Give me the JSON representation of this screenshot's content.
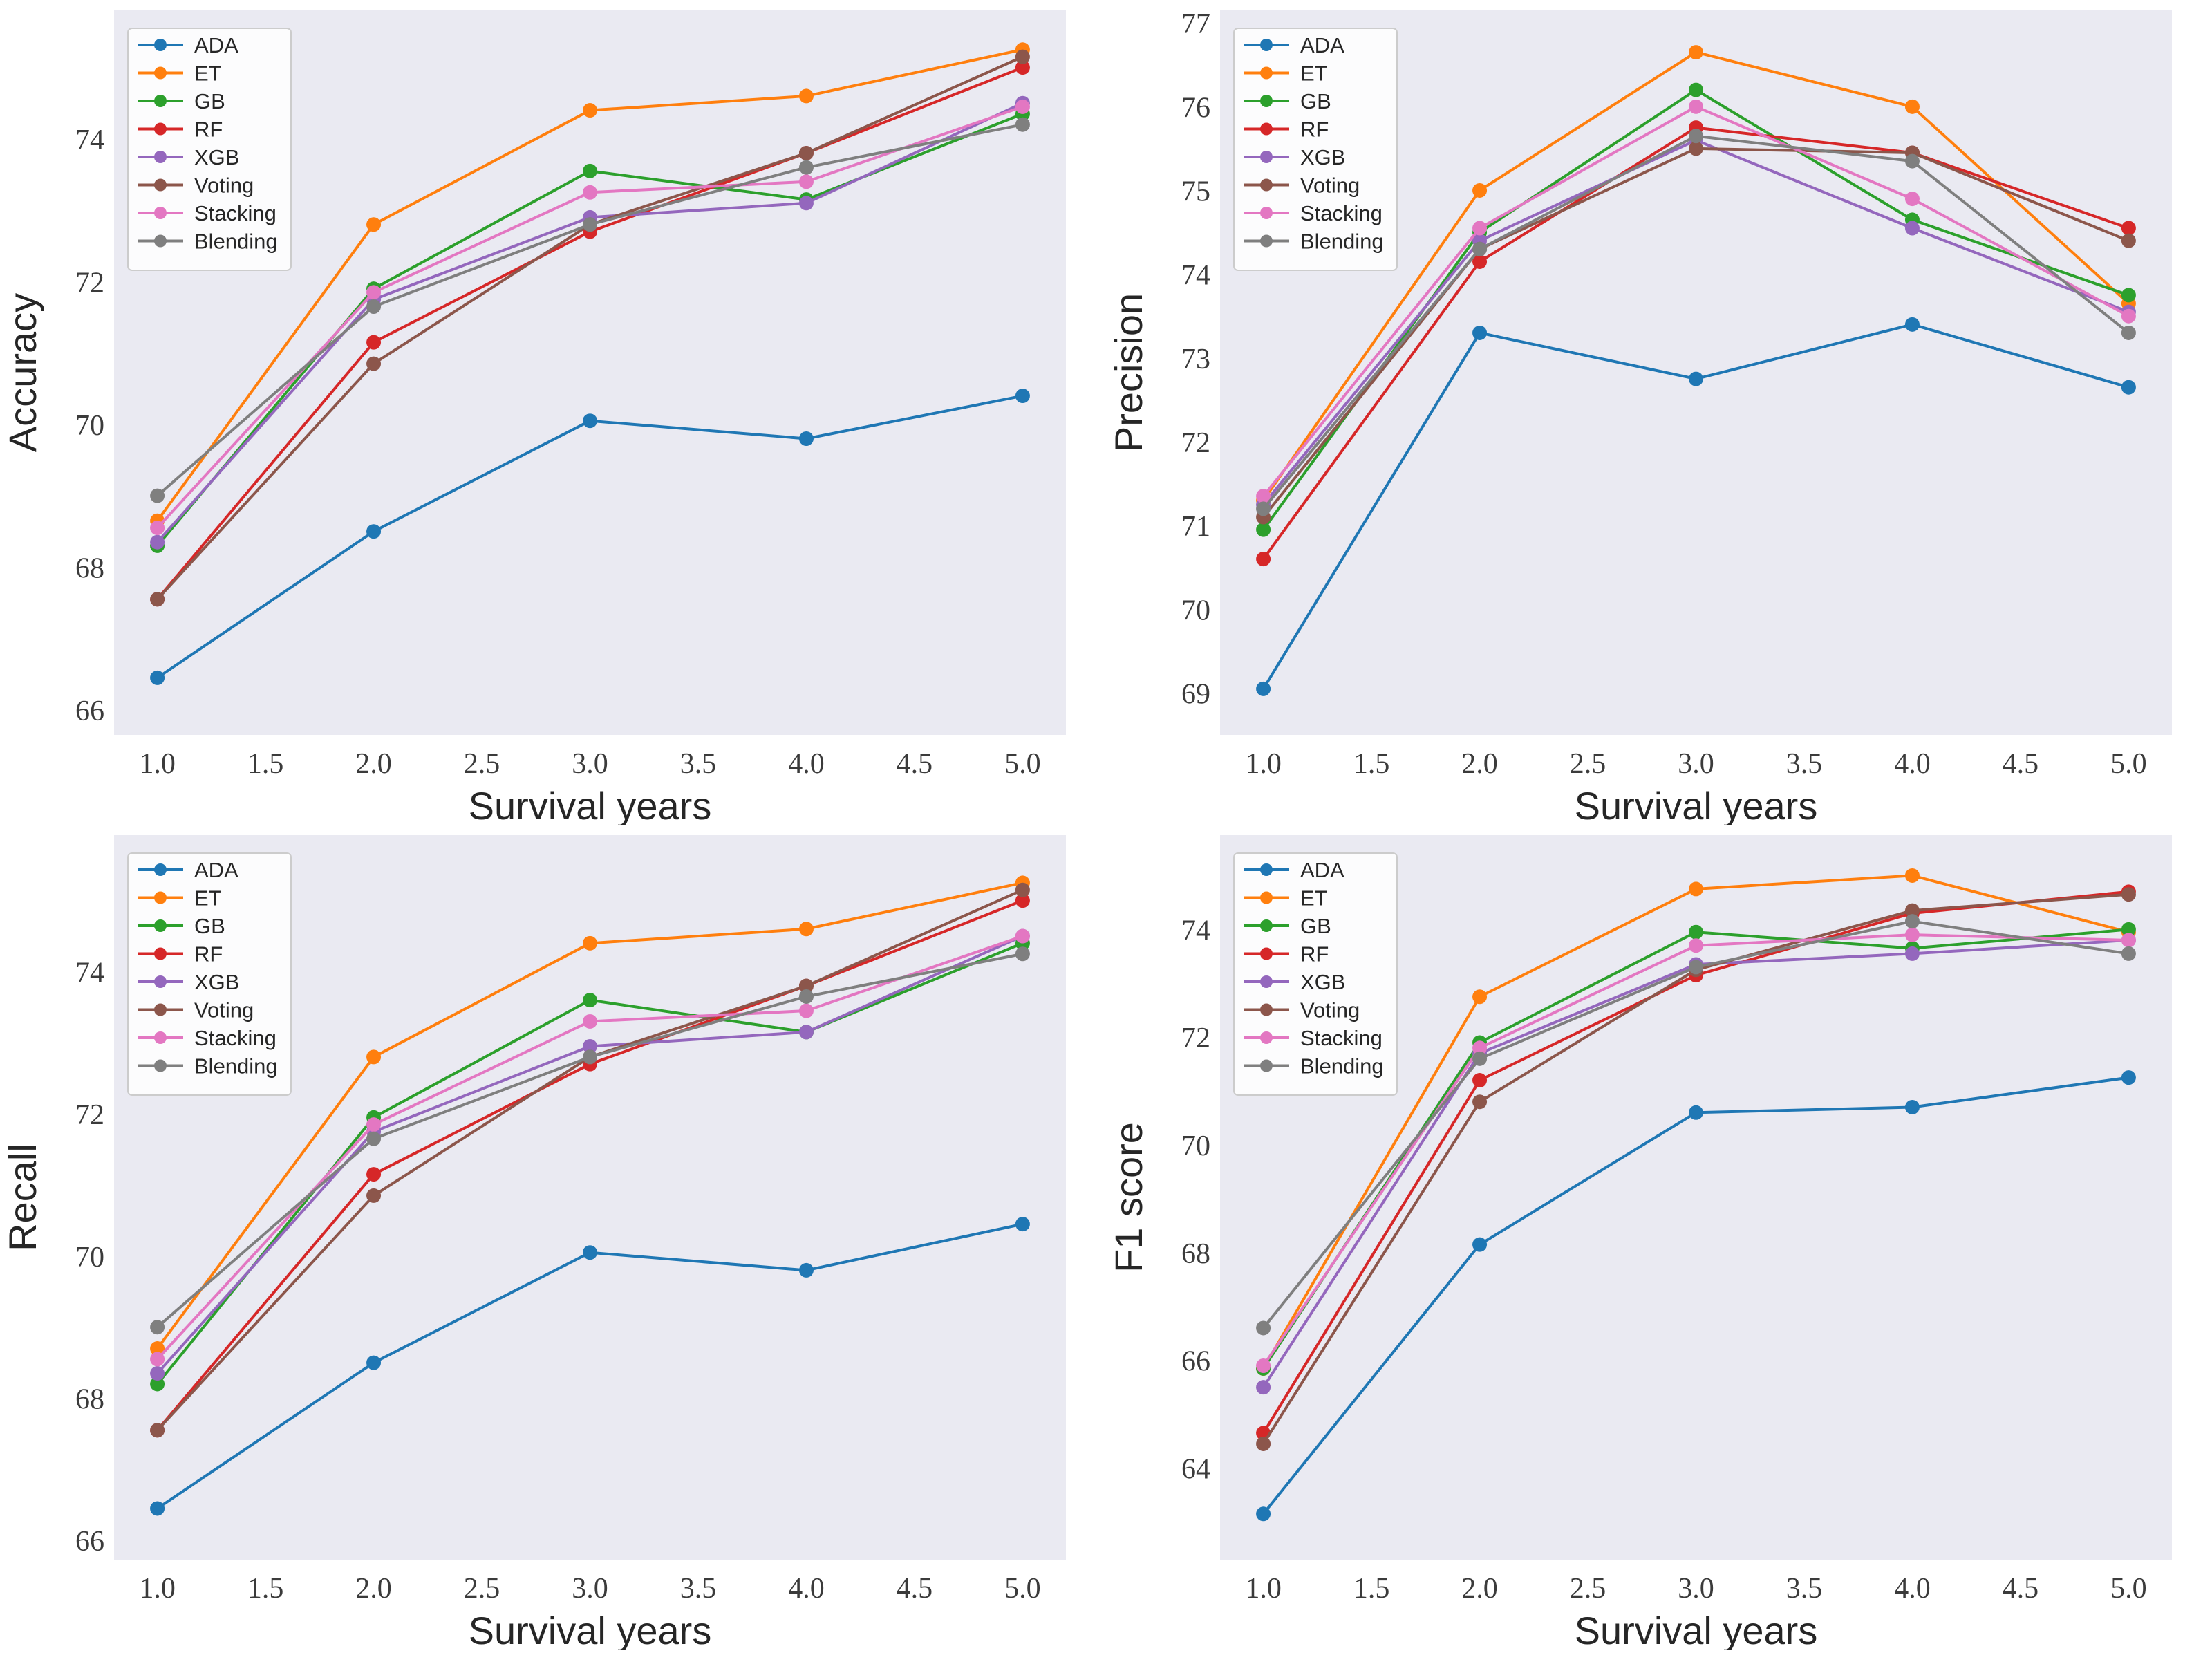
{
  "figure": {
    "background": "#ffffff",
    "plot_background": "#eaeaf2",
    "tick_color": "#3b3b3b",
    "label_color": "#262626",
    "legend_border": "#cccccc",
    "legend_background": "#ffffff"
  },
  "chart_data": [
    {
      "type": "line",
      "title": "",
      "xlabel": "Survival years",
      "ylabel": "Accuracy",
      "x": [
        1.0,
        2.0,
        3.0,
        4.0,
        5.0
      ],
      "xlim": [
        0.8,
        5.2
      ],
      "ylim": [
        65.65,
        75.8
      ],
      "xticks": [
        1.0,
        1.5,
        2.0,
        2.5,
        3.0,
        3.5,
        4.0,
        4.5,
        5.0
      ],
      "xtick_labels": [
        "1.0",
        "1.5",
        "2.0",
        "2.5",
        "3.0",
        "3.5",
        "4.0",
        "4.5",
        "5.0"
      ],
      "yticks": [
        66,
        68,
        70,
        72,
        74
      ],
      "ytick_labels": [
        "66",
        "68",
        "70",
        "72",
        "74"
      ],
      "grid": false,
      "legend_position": "upper-left",
      "series": [
        {
          "name": "ADA",
          "color": "#1f77b4",
          "values": [
            66.45,
            68.5,
            70.05,
            69.8,
            70.4
          ]
        },
        {
          "name": "ET",
          "color": "#ff7f0e",
          "values": [
            68.65,
            72.8,
            74.4,
            74.6,
            75.25
          ]
        },
        {
          "name": "GB",
          "color": "#2ca02c",
          "values": [
            68.3,
            71.9,
            73.55,
            73.15,
            74.35
          ]
        },
        {
          "name": "RF",
          "color": "#d62728",
          "values": [
            67.55,
            71.15,
            72.7,
            73.8,
            75.0
          ]
        },
        {
          "name": "XGB",
          "color": "#9467bd",
          "values": [
            68.35,
            71.75,
            72.9,
            73.1,
            74.5
          ]
        },
        {
          "name": "Voting",
          "color": "#8c564b",
          "values": [
            67.55,
            70.85,
            72.8,
            73.8,
            75.15
          ]
        },
        {
          "name": "Stacking",
          "color": "#e377c2",
          "values": [
            68.55,
            71.85,
            73.25,
            73.4,
            74.45
          ]
        },
        {
          "name": "Blending",
          "color": "#7f7f7f",
          "values": [
            69.0,
            71.65,
            72.8,
            73.6,
            74.2
          ]
        }
      ]
    },
    {
      "type": "line",
      "title": "",
      "xlabel": "Survival years",
      "ylabel": "Precision",
      "x": [
        1.0,
        2.0,
        3.0,
        4.0,
        5.0
      ],
      "xlim": [
        0.8,
        5.2
      ],
      "ylim": [
        68.5,
        77.15
      ],
      "xticks": [
        1.0,
        1.5,
        2.0,
        2.5,
        3.0,
        3.5,
        4.0,
        4.5,
        5.0
      ],
      "xtick_labels": [
        "1.0",
        "1.5",
        "2.0",
        "2.5",
        "3.0",
        "3.5",
        "4.0",
        "4.5",
        "5.0"
      ],
      "yticks": [
        69,
        70,
        71,
        72,
        73,
        74,
        75,
        76,
        77
      ],
      "ytick_labels": [
        "69",
        "70",
        "71",
        "72",
        "73",
        "74",
        "75",
        "76",
        "77"
      ],
      "grid": false,
      "legend_position": "upper-left",
      "series": [
        {
          "name": "ADA",
          "color": "#1f77b4",
          "values": [
            69.05,
            73.3,
            72.75,
            73.4,
            72.65
          ]
        },
        {
          "name": "ET",
          "color": "#ff7f0e",
          "values": [
            71.3,
            75.0,
            76.65,
            76.0,
            73.65
          ]
        },
        {
          "name": "GB",
          "color": "#2ca02c",
          "values": [
            70.95,
            74.5,
            76.2,
            74.65,
            73.75
          ]
        },
        {
          "name": "RF",
          "color": "#d62728",
          "values": [
            70.6,
            74.15,
            75.75,
            75.45,
            74.55
          ]
        },
        {
          "name": "XGB",
          "color": "#9467bd",
          "values": [
            71.25,
            74.4,
            75.6,
            74.55,
            73.55
          ]
        },
        {
          "name": "Voting",
          "color": "#8c564b",
          "values": [
            71.1,
            74.3,
            75.5,
            75.45,
            74.4
          ]
        },
        {
          "name": "Stacking",
          "color": "#e377c2",
          "values": [
            71.35,
            74.55,
            76.0,
            74.9,
            73.5
          ]
        },
        {
          "name": "Blending",
          "color": "#7f7f7f",
          "values": [
            71.2,
            74.3,
            75.65,
            75.35,
            73.3
          ]
        }
      ]
    },
    {
      "type": "line",
      "title": "",
      "xlabel": "Survival years",
      "ylabel": "Recall",
      "x": [
        1.0,
        2.0,
        3.0,
        4.0,
        5.0
      ],
      "xlim": [
        0.8,
        5.2
      ],
      "ylim": [
        65.73,
        75.92
      ],
      "xticks": [
        1.0,
        1.5,
        2.0,
        2.5,
        3.0,
        3.5,
        4.0,
        4.5,
        5.0
      ],
      "xtick_labels": [
        "1.0",
        "1.5",
        "2.0",
        "2.5",
        "3.0",
        "3.5",
        "4.0",
        "4.5",
        "5.0"
      ],
      "yticks": [
        66,
        68,
        70,
        72,
        74
      ],
      "ytick_labels": [
        "66",
        "68",
        "70",
        "72",
        "74"
      ],
      "grid": false,
      "legend_position": "upper-left",
      "series": [
        {
          "name": "ADA",
          "color": "#1f77b4",
          "values": [
            66.45,
            68.5,
            70.05,
            69.8,
            70.45
          ]
        },
        {
          "name": "ET",
          "color": "#ff7f0e",
          "values": [
            68.7,
            72.8,
            74.4,
            74.6,
            75.25
          ]
        },
        {
          "name": "GB",
          "color": "#2ca02c",
          "values": [
            68.2,
            71.95,
            73.6,
            73.15,
            74.4
          ]
        },
        {
          "name": "RF",
          "color": "#d62728",
          "values": [
            67.55,
            71.15,
            72.7,
            73.8,
            75.0
          ]
        },
        {
          "name": "XGB",
          "color": "#9467bd",
          "values": [
            68.35,
            71.75,
            72.95,
            73.15,
            74.5
          ]
        },
        {
          "name": "Voting",
          "color": "#8c564b",
          "values": [
            67.55,
            70.85,
            72.8,
            73.8,
            75.15
          ]
        },
        {
          "name": "Stacking",
          "color": "#e377c2",
          "values": [
            68.55,
            71.85,
            73.3,
            73.45,
            74.5
          ]
        },
        {
          "name": "Blending",
          "color": "#7f7f7f",
          "values": [
            69.0,
            71.65,
            72.8,
            73.65,
            74.25
          ]
        }
      ]
    },
    {
      "type": "line",
      "title": "",
      "xlabel": "Survival years",
      "ylabel": "F1 score",
      "x": [
        1.0,
        2.0,
        3.0,
        4.0,
        5.0
      ],
      "xlim": [
        0.8,
        5.2
      ],
      "ylim": [
        62.3,
        75.75
      ],
      "xticks": [
        1.0,
        1.5,
        2.0,
        2.5,
        3.0,
        3.5,
        4.0,
        4.5,
        5.0
      ],
      "xtick_labels": [
        "1.0",
        "1.5",
        "2.0",
        "2.5",
        "3.0",
        "3.5",
        "4.0",
        "4.5",
        "5.0"
      ],
      "yticks": [
        64,
        66,
        68,
        70,
        72,
        74
      ],
      "ytick_labels": [
        "64",
        "66",
        "68",
        "70",
        "72",
        "74"
      ],
      "grid": false,
      "legend_position": "upper-left",
      "series": [
        {
          "name": "ADA",
          "color": "#1f77b4",
          "values": [
            63.15,
            68.15,
            70.6,
            70.7,
            71.25
          ]
        },
        {
          "name": "ET",
          "color": "#ff7f0e",
          "values": [
            65.85,
            72.75,
            74.75,
            75.0,
            73.95
          ]
        },
        {
          "name": "GB",
          "color": "#2ca02c",
          "values": [
            65.85,
            71.9,
            73.95,
            73.65,
            74.0
          ]
        },
        {
          "name": "RF",
          "color": "#d62728",
          "values": [
            64.65,
            71.2,
            73.15,
            74.3,
            74.7
          ]
        },
        {
          "name": "XGB",
          "color": "#9467bd",
          "values": [
            65.5,
            71.7,
            73.35,
            73.55,
            73.8
          ]
        },
        {
          "name": "Voting",
          "color": "#8c564b",
          "values": [
            64.45,
            70.8,
            73.25,
            74.35,
            74.65
          ]
        },
        {
          "name": "Stacking",
          "color": "#e377c2",
          "values": [
            65.9,
            71.8,
            73.7,
            73.9,
            73.8
          ]
        },
        {
          "name": "Blending",
          "color": "#7f7f7f",
          "values": [
            66.6,
            71.6,
            73.3,
            74.15,
            73.55
          ]
        }
      ]
    }
  ]
}
